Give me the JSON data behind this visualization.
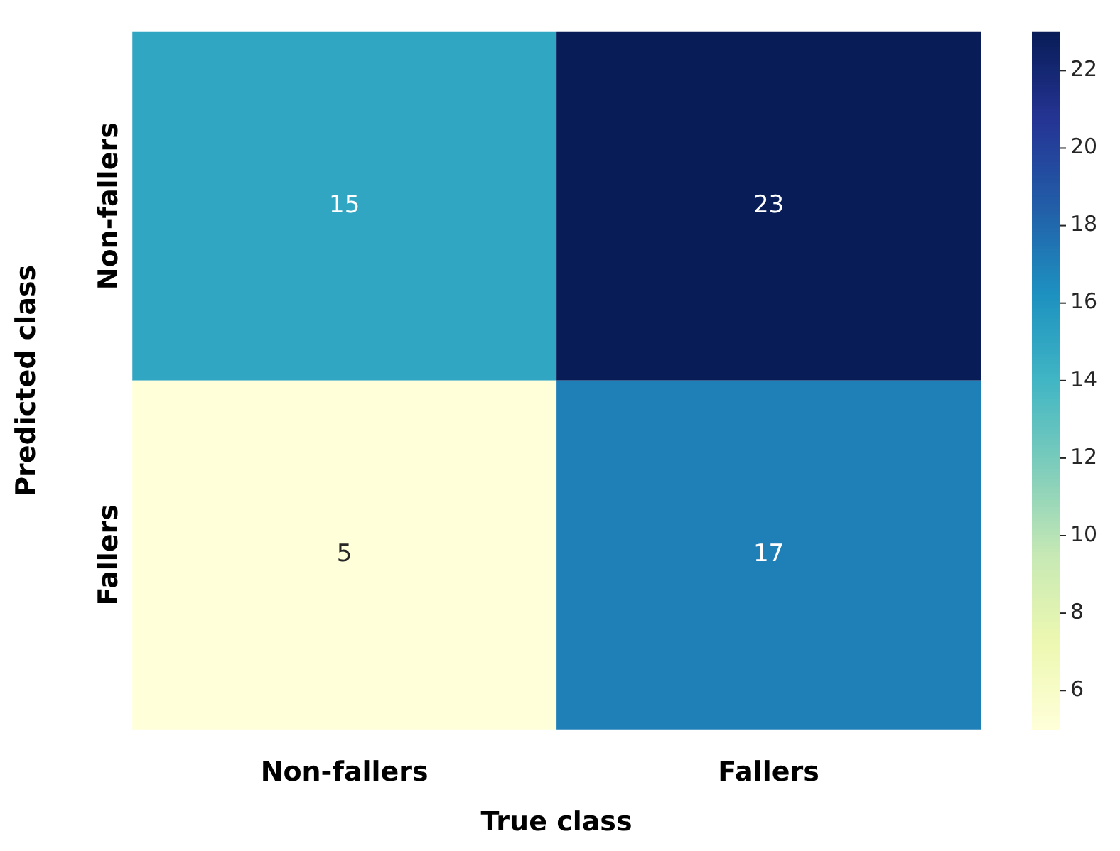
{
  "chart_data": {
    "type": "heatmap",
    "xlabel": "True class",
    "ylabel": "Predicted class",
    "categories": [
      "Non-fallers",
      "Fallers"
    ],
    "y_categories": [
      "Non-fallers",
      "Fallers"
    ],
    "cells": [
      [
        15,
        23
      ],
      [
        5,
        17
      ]
    ],
    "data_labels": true,
    "clim": [
      5,
      23
    ],
    "cticks": [
      6,
      8,
      10,
      12,
      14,
      16,
      18,
      20,
      22
    ]
  }
}
